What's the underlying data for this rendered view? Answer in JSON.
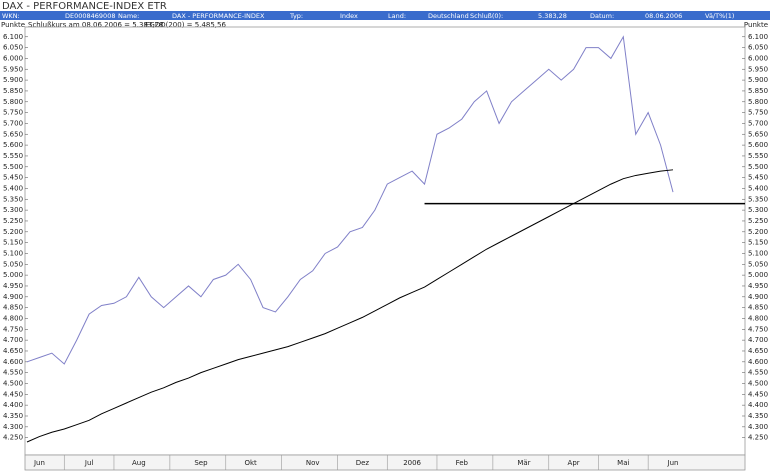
{
  "chart_data": {
    "type": "line",
    "title": "DAX - PERFORMANCE-INDEX ETR",
    "header": {
      "fields": [
        "WKN:",
        "DE0008469008",
        "Name:",
        "DAX - PERFORMANCE-INDEX",
        "Typ:",
        "Index",
        "Land:",
        "Deutschland",
        "Schluß(0):",
        "5.383,28",
        "Datum:",
        "08.06.2006",
        "Vä/T%(1)"
      ]
    },
    "ylabel_left": "Punkte",
    "ylabel_right": "Punkte",
    "legend": [
      "Schlußkurs am 08.06.2006 = 5.383,28",
      "EGDD(200) = 5.485,56"
    ],
    "categories": [
      null,
      "Jun",
      null,
      null,
      null,
      "Jul",
      null,
      null,
      null,
      "Aug",
      null,
      null,
      null,
      null,
      "Sep",
      null,
      null,
      null,
      "Okt",
      null,
      null,
      null,
      null,
      "Nov",
      null,
      null,
      null,
      "Dez",
      null,
      null,
      null,
      "2006",
      null,
      null,
      null,
      "Feb",
      null,
      null,
      null,
      null,
      "Mär",
      null,
      null,
      null,
      "Apr",
      null,
      null,
      null,
      "Mai",
      null,
      null,
      null,
      "Jun"
    ],
    "series": [
      {
        "name": "Schlußkurs",
        "color": "#8080c8",
        "values": [
          4600,
          4620,
          4640,
          4590,
          4700,
          4820,
          4860,
          4870,
          4900,
          4990,
          4900,
          4850,
          4900,
          4950,
          4900,
          4980,
          5000,
          5050,
          4980,
          4850,
          4830,
          4900,
          4980,
          5020,
          5100,
          5130,
          5200,
          5220,
          5300,
          5420,
          5450,
          5480,
          5420,
          5650,
          5680,
          5720,
          5800,
          5850,
          5700,
          5800,
          5850,
          5900,
          5950,
          5900,
          5950,
          6050,
          6050,
          6000,
          6100,
          5650,
          5750,
          5600,
          5383
        ]
      },
      {
        "name": "EGDD(200)",
        "color": "#000000",
        "values": [
          4230,
          4255,
          4275,
          4290,
          4310,
          4330,
          4360,
          4385,
          4410,
          4435,
          4460,
          4480,
          4505,
          4525,
          4550,
          4570,
          4590,
          4610,
          4625,
          4640,
          4655,
          4670,
          4690,
          4710,
          4730,
          4755,
          4780,
          4805,
          4835,
          4865,
          4895,
          4920,
          4945,
          4980,
          5015,
          5050,
          5085,
          5120,
          5150,
          5180,
          5210,
          5240,
          5270,
          5300,
          5330,
          5360,
          5390,
          5420,
          5445,
          5460,
          5470,
          5480,
          5486
        ]
      }
    ],
    "support_line": {
      "value": 5330,
      "x_start": 32
    },
    "ylim": [
      4170,
      6145
    ],
    "yticks": [
      {
        "value": 4250,
        "label": "4.250"
      },
      {
        "value": 4300,
        "label": "4.300"
      },
      {
        "value": 4350,
        "label": "4.350"
      },
      {
        "value": 4400,
        "label": "4.400"
      },
      {
        "value": 4450,
        "label": "4.450"
      },
      {
        "value": 4500,
        "label": "4.500"
      },
      {
        "value": 4550,
        "label": "4.550"
      },
      {
        "value": 4600,
        "label": "4.600"
      },
      {
        "value": 4650,
        "label": "4.650"
      },
      {
        "value": 4700,
        "label": "4.700"
      },
      {
        "value": 4750,
        "label": "4.750"
      },
      {
        "value": 4800,
        "label": "4.800"
      },
      {
        "value": 4850,
        "label": "4.850"
      },
      {
        "value": 4900,
        "label": "4.900"
      },
      {
        "value": 4950,
        "label": "4.950"
      },
      {
        "value": 5000,
        "label": "5.000"
      },
      {
        "value": 5050,
        "label": "5.050"
      },
      {
        "value": 5100,
        "label": "5.100"
      },
      {
        "value": 5150,
        "label": "5.150"
      },
      {
        "value": 5200,
        "label": "5.200"
      },
      {
        "value": 5250,
        "label": "5.250"
      },
      {
        "value": 5300,
        "label": "5.300"
      },
      {
        "value": 5350,
        "label": "5.350"
      },
      {
        "value": 5400,
        "label": "5.400"
      },
      {
        "value": 5450,
        "label": "5.450"
      },
      {
        "value": 5500,
        "label": "5.500"
      },
      {
        "value": 5550,
        "label": "5.550"
      },
      {
        "value": 5600,
        "label": "5.600"
      },
      {
        "value": 5650,
        "label": "5.650"
      },
      {
        "value": 5700,
        "label": "5.700"
      },
      {
        "value": 5750,
        "label": "5.750"
      },
      {
        "value": 5800,
        "label": "5.800"
      },
      {
        "value": 5850,
        "label": "5.850"
      },
      {
        "value": 5900,
        "label": "5.900"
      },
      {
        "value": 5950,
        "label": "5.950"
      },
      {
        "value": 6000,
        "label": "6.000"
      },
      {
        "value": 6050,
        "label": "6.050"
      },
      {
        "value": 6100,
        "label": "6.100"
      }
    ],
    "grid": false
  }
}
